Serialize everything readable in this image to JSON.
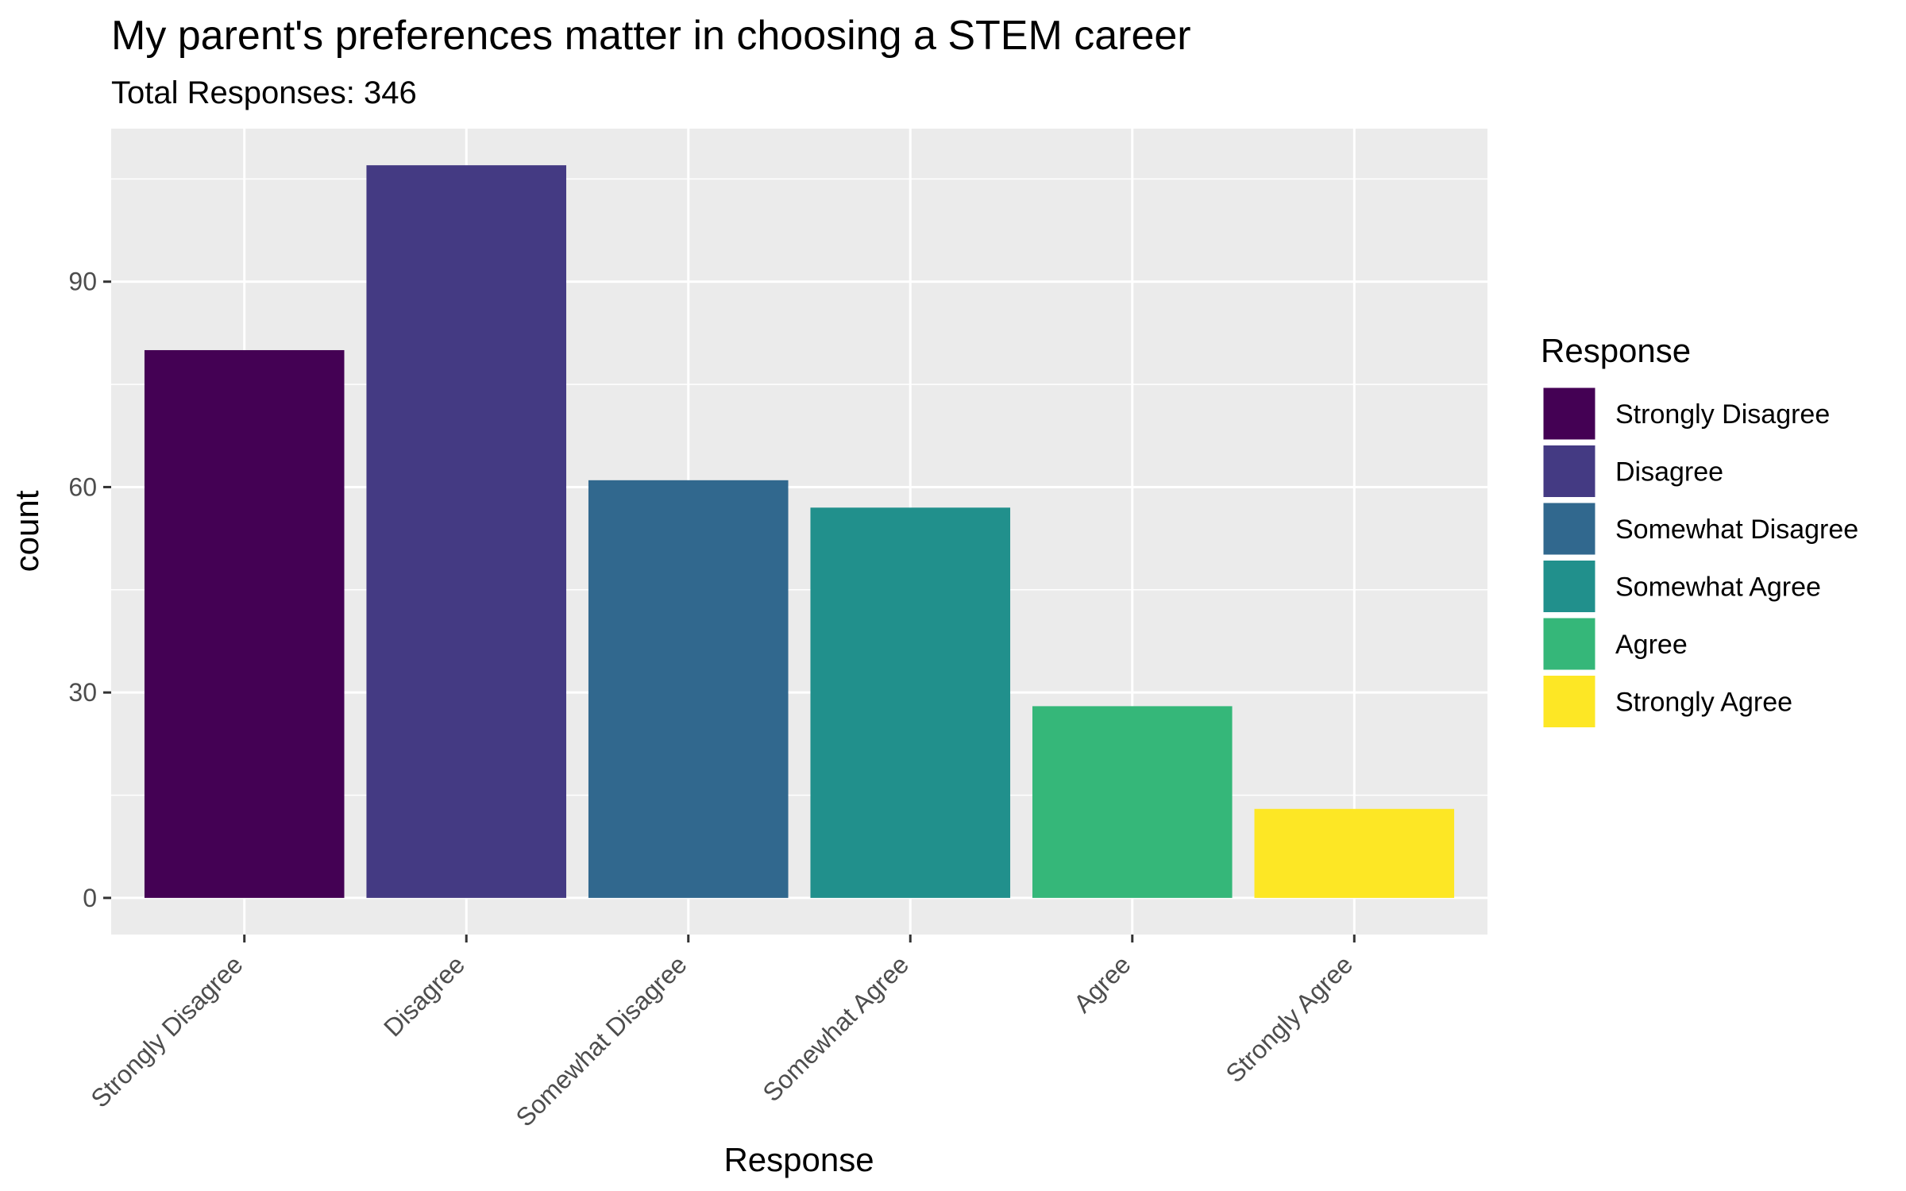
{
  "chart_data": {
    "type": "bar",
    "title": "My parent's preferences matter in choosing a STEM career",
    "subtitle": "Total Responses: 346",
    "xlabel": "Response",
    "ylabel": "count",
    "categories": [
      "Strongly Disagree",
      "Disagree",
      "Somewhat Disagree",
      "Somewhat Agree",
      "Agree",
      "Strongly Agree"
    ],
    "values": [
      80,
      107,
      61,
      57,
      28,
      13
    ],
    "colors": [
      "#440154",
      "#443A83",
      "#31688E",
      "#21908C",
      "#35B779",
      "#FDE725"
    ],
    "ylim": [
      -5.35,
      112.35
    ],
    "y_ticks": [
      0,
      30,
      60,
      90
    ],
    "grid": true,
    "legend": {
      "title": "Response",
      "position": "right",
      "items": [
        "Strongly Disagree",
        "Disagree",
        "Somewhat Disagree",
        "Somewhat Agree",
        "Agree",
        "Strongly Agree"
      ]
    }
  }
}
